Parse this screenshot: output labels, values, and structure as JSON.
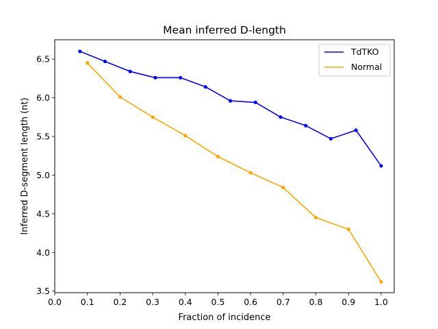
{
  "chart_data": {
    "type": "line",
    "title": "Mean inferred D-length",
    "xlabel": "Fraction of incidence",
    "ylabel": "Inferred D-segment length (nt)",
    "xlim": [
      0.0,
      1.04
    ],
    "ylim": [
      3.48,
      6.75
    ],
    "xticks": [
      "0.0",
      "0.1",
      "0.2",
      "0.3",
      "0.4",
      "0.5",
      "0.6",
      "0.7",
      "0.8",
      "0.9",
      "1.0"
    ],
    "yticks": [
      "3.5",
      "4.0",
      "4.5",
      "5.0",
      "5.5",
      "6.0",
      "6.5"
    ],
    "grid": false,
    "legend_position": "top-right",
    "series": [
      {
        "name": "TdTKO",
        "color": "#0000ff",
        "x": [
          0.077,
          0.154,
          0.231,
          0.308,
          0.385,
          0.462,
          0.538,
          0.615,
          0.692,
          0.769,
          0.846,
          0.923,
          1.0
        ],
        "y": [
          6.6,
          6.47,
          6.34,
          6.26,
          6.26,
          6.14,
          5.96,
          5.94,
          5.75,
          5.64,
          5.47,
          5.58,
          5.12
        ]
      },
      {
        "name": "Normal",
        "color": "#ffa500",
        "x": [
          0.1,
          0.2,
          0.3,
          0.4,
          0.5,
          0.6,
          0.7,
          0.8,
          0.9,
          1.0
        ],
        "y": [
          6.45,
          6.01,
          5.75,
          5.51,
          5.24,
          5.03,
          4.84,
          4.45,
          4.3,
          3.62
        ]
      }
    ]
  }
}
